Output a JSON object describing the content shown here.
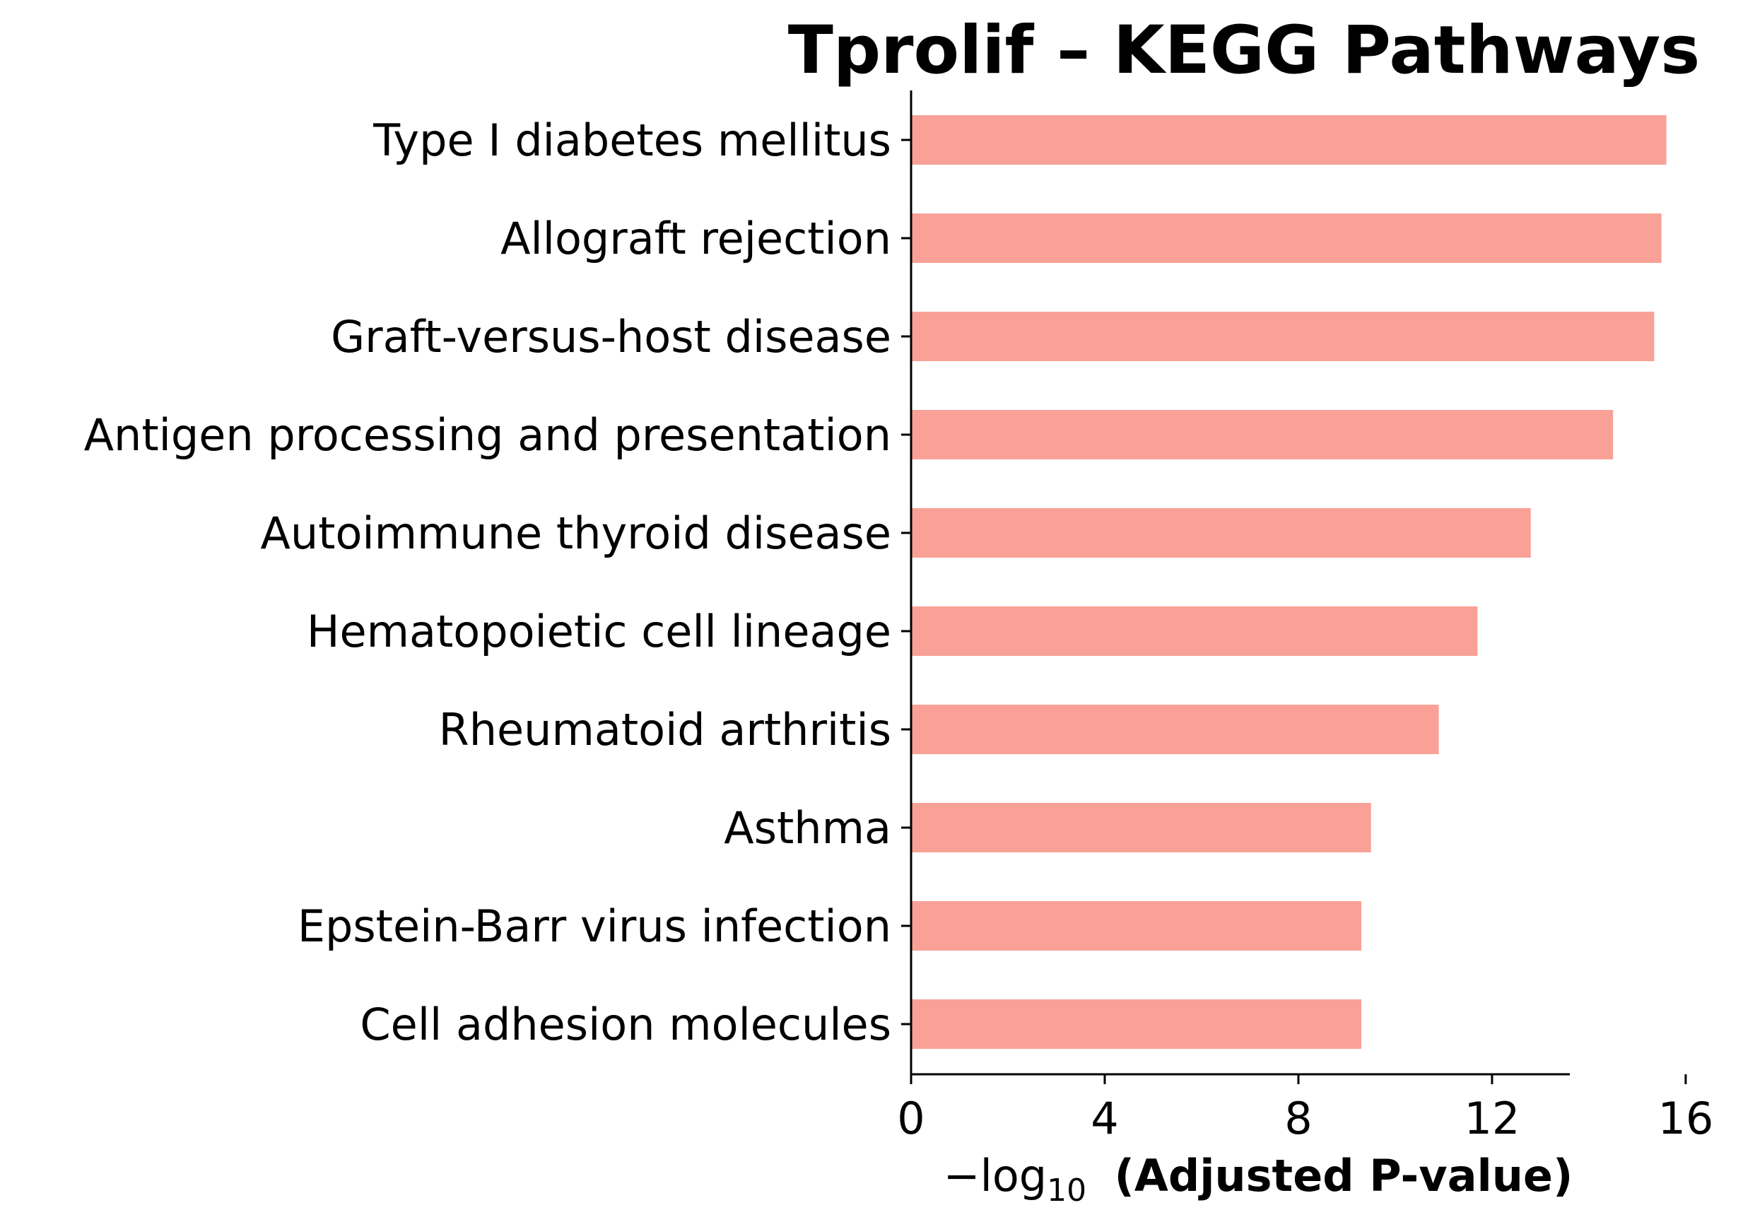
{
  "chart_data": {
    "type": "bar",
    "orientation": "horizontal",
    "title": "Tprolif – KEGG Pathways",
    "categories": [
      "Type I diabetes mellitus",
      "Allograft rejection",
      "Graft-versus-host disease",
      "Antigen processing and presentation",
      "Autoimmune thyroid disease",
      "Hematopoietic cell lineage",
      "Rheumatoid arthritis",
      "Asthma",
      "Epstein-Barr virus infection",
      "Cell adhesion molecules"
    ],
    "values": [
      15.6,
      15.5,
      15.35,
      14.5,
      12.8,
      11.7,
      10.9,
      9.5,
      9.3,
      9.3
    ],
    "xlabel": {
      "prefix": "−log",
      "subscript": "10",
      "text": "(Adjusted P-value)"
    },
    "ylabel": "",
    "xlim": [
      0,
      16.4
    ],
    "xticks": [
      "0",
      "4",
      "8",
      "12",
      "16"
    ],
    "bar_color": "#f9a197",
    "grid": false,
    "legend": "none"
  }
}
